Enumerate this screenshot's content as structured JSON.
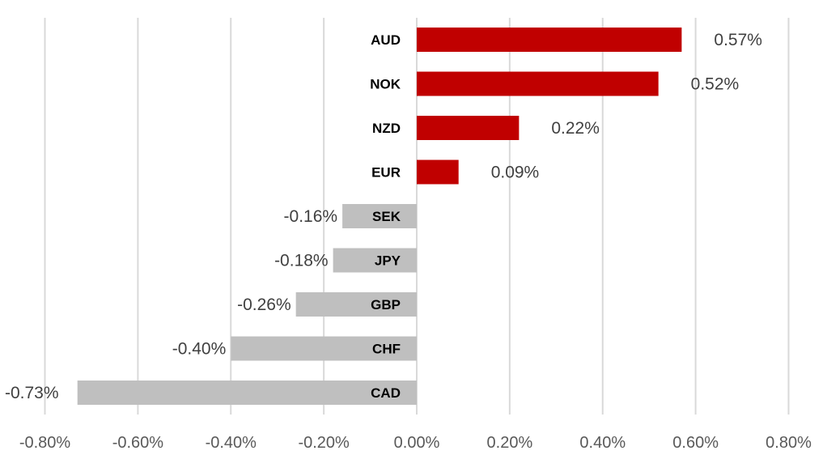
{
  "chart_data": {
    "type": "bar",
    "orientation": "horizontal",
    "categories": [
      "AUD",
      "NOK",
      "NZD",
      "EUR",
      "SEK",
      "JPY",
      "GBP",
      "CHF",
      "CAD"
    ],
    "values": [
      0.57,
      0.52,
      0.22,
      0.09,
      -0.16,
      -0.18,
      -0.26,
      -0.4,
      -0.73
    ],
    "value_labels": [
      "0.57%",
      "0.52%",
      "0.22%",
      "0.09%",
      "-0.16%",
      "-0.18%",
      "-0.26%",
      "-0.40%",
      "-0.73%"
    ],
    "xlim": [
      -0.8,
      0.8
    ],
    "x_ticks": [
      -0.8,
      -0.6,
      -0.4,
      -0.2,
      0.0,
      0.2,
      0.4,
      0.6,
      0.8
    ],
    "x_tick_labels": [
      "-0.80%",
      "-0.60%",
      "-0.40%",
      "-0.20%",
      "0.00%",
      "0.20%",
      "0.40%",
      "0.60%",
      "0.80%"
    ],
    "title": "",
    "xlabel": "",
    "ylabel": "",
    "grid": "vertical",
    "legend": "none",
    "colors": {
      "positive": "#c00000",
      "negative": "#bfbfbf",
      "grid": "#d9d9d9"
    }
  }
}
